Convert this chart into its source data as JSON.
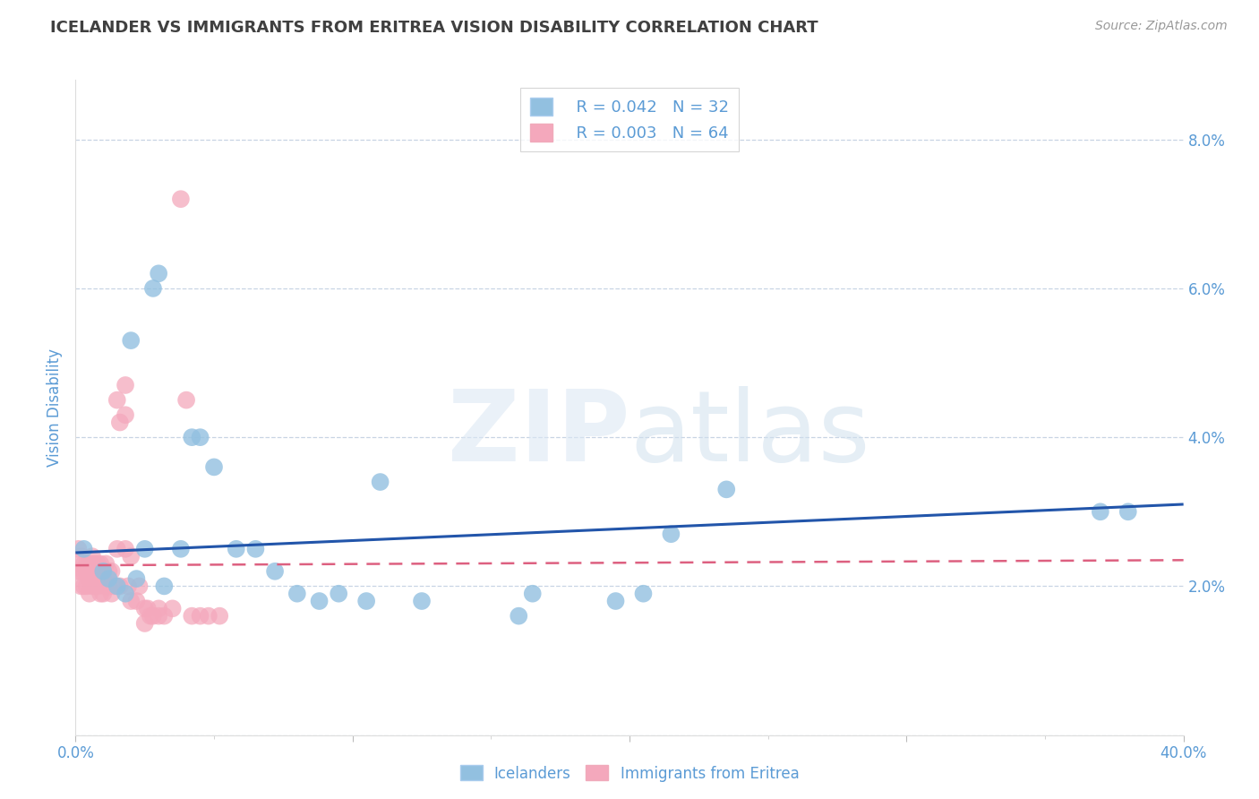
{
  "title": "ICELANDER VS IMMIGRANTS FROM ERITREA VISION DISABILITY CORRELATION CHART",
  "source": "Source: ZipAtlas.com",
  "ylabel": "Vision Disability",
  "xlim": [
    0.0,
    0.4
  ],
  "ylim": [
    0.0,
    0.088
  ],
  "y_ticks": [
    0.0,
    0.02,
    0.04,
    0.06,
    0.08
  ],
  "y_tick_labels": [
    "",
    "2.0%",
    "4.0%",
    "6.0%",
    "8.0%"
  ],
  "legend_r_blue": "R = 0.042",
  "legend_n_blue": "N = 32",
  "legend_r_pink": "R = 0.003",
  "legend_n_pink": "N = 64",
  "legend_label_blue": "Icelanders",
  "legend_label_pink": "Immigrants from Eritrea",
  "blue_color": "#92c0e0",
  "pink_color": "#f4a8bc",
  "blue_line_color": "#2255aa",
  "pink_line_color": "#dd6080",
  "axis_color": "#5b9bd5",
  "grid_color": "#c8d4e4",
  "title_color": "#404040",
  "blue_scatter_x": [
    0.003,
    0.01,
    0.012,
    0.015,
    0.018,
    0.02,
    0.022,
    0.025,
    0.028,
    0.03,
    0.032,
    0.038,
    0.042,
    0.045,
    0.05,
    0.058,
    0.065,
    0.072,
    0.08,
    0.088,
    0.095,
    0.105,
    0.11,
    0.125,
    0.16,
    0.165,
    0.195,
    0.205,
    0.215,
    0.235,
    0.37,
    0.38
  ],
  "blue_scatter_y": [
    0.025,
    0.022,
    0.021,
    0.02,
    0.019,
    0.053,
    0.021,
    0.025,
    0.06,
    0.062,
    0.02,
    0.025,
    0.04,
    0.04,
    0.036,
    0.025,
    0.025,
    0.022,
    0.019,
    0.018,
    0.019,
    0.018,
    0.034,
    0.018,
    0.016,
    0.019,
    0.018,
    0.019,
    0.027,
    0.033,
    0.03,
    0.03
  ],
  "pink_scatter_x": [
    0.001,
    0.001,
    0.002,
    0.002,
    0.002,
    0.003,
    0.003,
    0.003,
    0.004,
    0.004,
    0.004,
    0.005,
    0.005,
    0.005,
    0.005,
    0.006,
    0.006,
    0.006,
    0.006,
    0.007,
    0.007,
    0.007,
    0.008,
    0.008,
    0.008,
    0.009,
    0.009,
    0.01,
    0.01,
    0.01,
    0.011,
    0.011,
    0.012,
    0.012,
    0.013,
    0.013,
    0.014,
    0.015,
    0.015,
    0.016,
    0.016,
    0.018,
    0.018,
    0.019,
    0.02,
    0.02,
    0.022,
    0.023,
    0.025,
    0.025,
    0.026,
    0.027,
    0.028,
    0.03,
    0.03,
    0.032,
    0.035,
    0.04,
    0.042,
    0.045,
    0.048,
    0.052,
    0.018,
    0.038
  ],
  "pink_scatter_y": [
    0.025,
    0.022,
    0.024,
    0.022,
    0.02,
    0.023,
    0.022,
    0.02,
    0.023,
    0.022,
    0.02,
    0.023,
    0.022,
    0.021,
    0.019,
    0.024,
    0.023,
    0.022,
    0.02,
    0.023,
    0.022,
    0.02,
    0.023,
    0.022,
    0.02,
    0.023,
    0.019,
    0.022,
    0.021,
    0.019,
    0.023,
    0.02,
    0.022,
    0.02,
    0.022,
    0.019,
    0.02,
    0.025,
    0.045,
    0.042,
    0.02,
    0.025,
    0.043,
    0.02,
    0.024,
    0.018,
    0.018,
    0.02,
    0.017,
    0.015,
    0.017,
    0.016,
    0.016,
    0.017,
    0.016,
    0.016,
    0.017,
    0.045,
    0.016,
    0.016,
    0.016,
    0.016,
    0.047,
    0.072
  ],
  "blue_trendline_x": [
    0.0,
    0.4
  ],
  "blue_trendline_y": [
    0.0245,
    0.031
  ],
  "pink_trendline_x": [
    0.0,
    0.4
  ],
  "pink_trendline_y": [
    0.0228,
    0.0235
  ]
}
